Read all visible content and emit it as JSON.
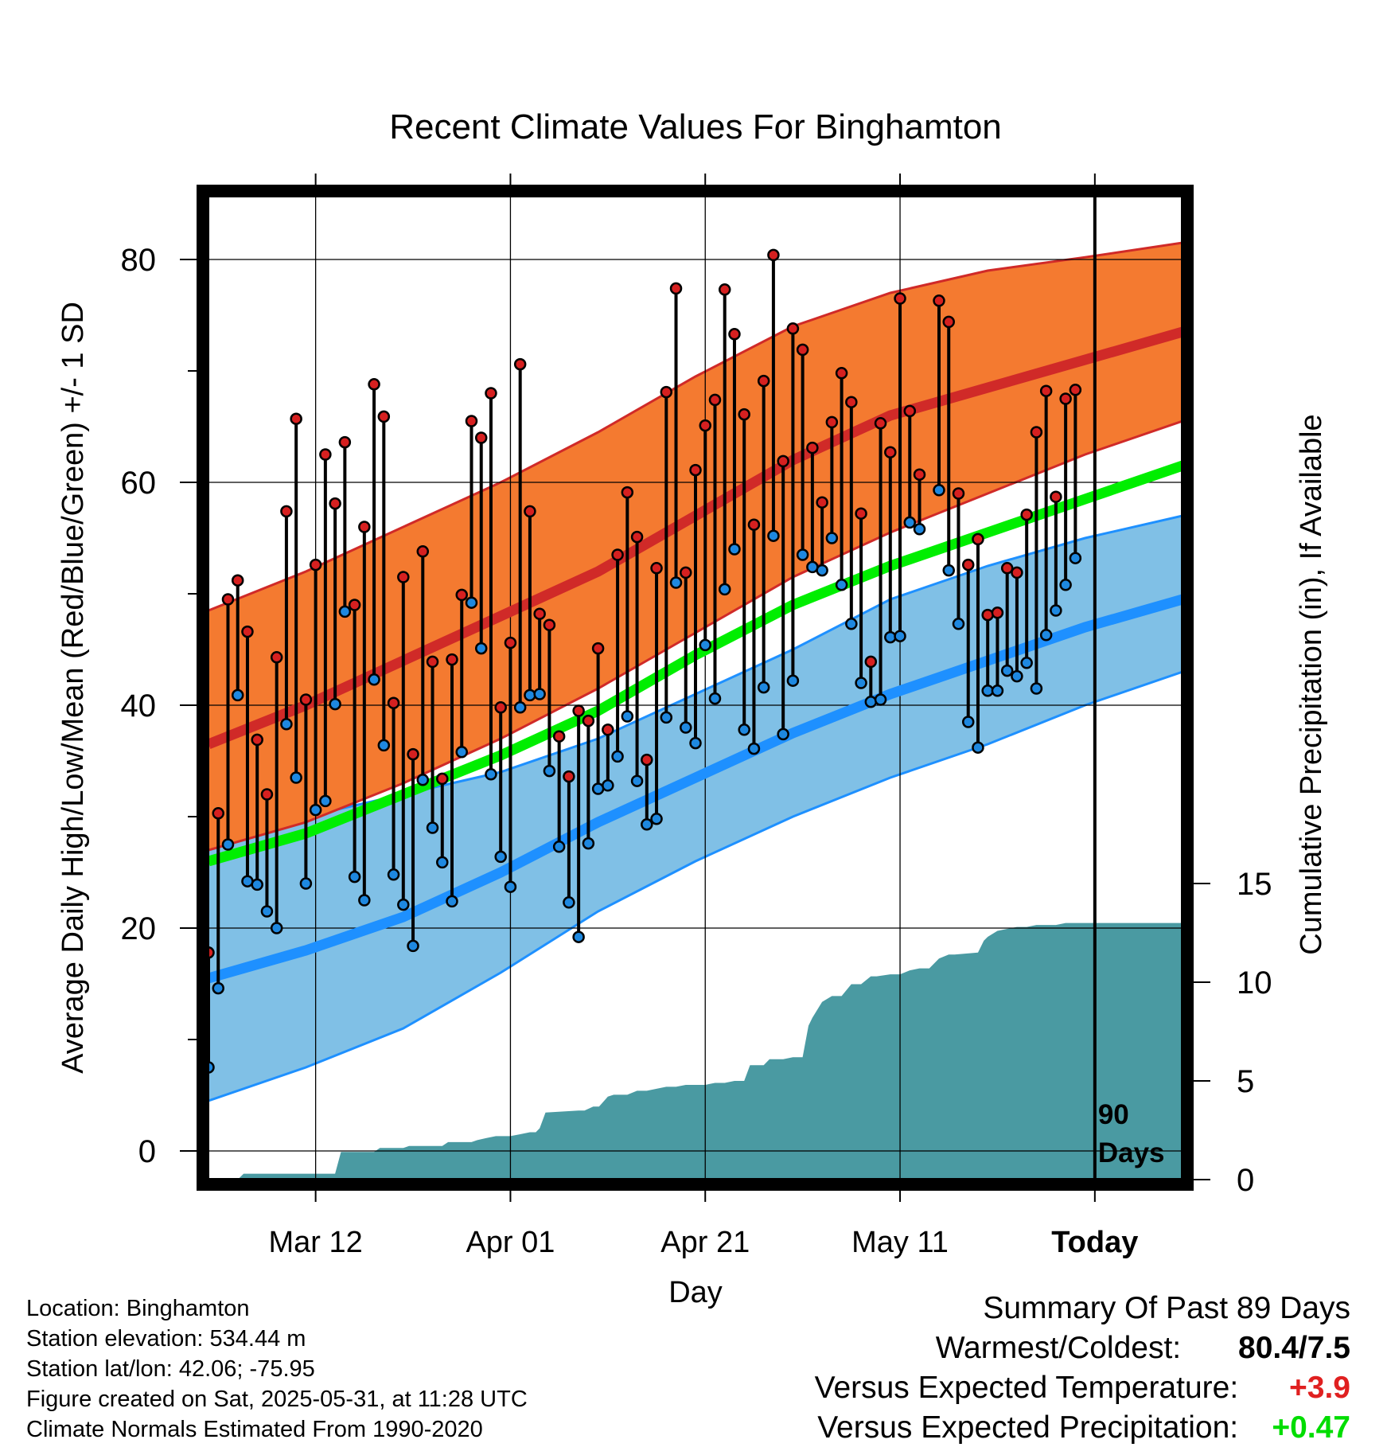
{
  "chart_data": {
    "type": "line",
    "title": "Recent Climate Values For Binghamton",
    "xlabel": "Day",
    "ylabel": "Average Daily High/Low/Mean (Red/Blue/Green) +/- 1 SD",
    "y2label": "Cumulative Precipitation (in), If Available",
    "ylim": [
      -2,
      87
    ],
    "y2lim": [
      0,
      29
    ],
    "xlim": [
      0,
      100
    ],
    "y_ticks": [
      "0",
      "20",
      "40",
      "60",
      "80"
    ],
    "y_tick_values": [
      0,
      20,
      40,
      60,
      80
    ],
    "y2_ticks": [
      "0",
      "5",
      "10",
      "15"
    ],
    "y2_tick_values": [
      0,
      5,
      10,
      15
    ],
    "x_ticks": [
      "Mar 12",
      "Apr 01",
      "Apr 21",
      "May 11",
      "Today"
    ],
    "x_tick_days": [
      11,
      31,
      51,
      71,
      91
    ],
    "today_day": 91,
    "today_label_line1": "90",
    "today_label_line2": "Days",
    "colors": {
      "high_band": "#f47a30",
      "high_line": "#d02a28",
      "low_band": "#80c0e6",
      "low_line": "#1e90ff",
      "mean_line": "#00ee00",
      "precip": "#4a9aa2",
      "high_marker": "#d62020",
      "low_marker": "#1e88e0"
    },
    "normals": {
      "days": [
        0,
        10,
        20,
        30,
        40,
        50,
        60,
        70,
        80,
        90,
        100
      ],
      "high_mean": [
        36.5,
        40,
        44,
        48,
        52,
        57,
        62,
        66,
        68.5,
        71,
        73.5
      ],
      "high_upper": [
        48.5,
        52,
        56,
        60,
        64.5,
        69.5,
        74,
        77,
        79,
        80.2,
        81.5
      ],
      "high_lower": [
        27,
        29.5,
        33,
        37,
        41.5,
        46.5,
        51.5,
        55.5,
        59,
        62.5,
        65.5
      ],
      "mean": [
        26,
        28.5,
        32,
        35.5,
        39.5,
        44.5,
        49,
        52.5,
        55.5,
        58.5,
        61.5
      ],
      "low_mean": [
        15.5,
        18,
        21,
        25,
        29.5,
        33.5,
        37.5,
        41,
        44,
        47,
        49.5
      ],
      "low_upper": [
        27.5,
        30,
        32,
        34,
        37,
        41,
        45,
        49.5,
        52.5,
        55,
        57
      ],
      "low_lower": [
        4.5,
        7.5,
        11,
        16,
        21.5,
        26,
        30,
        33.5,
        36.5,
        40,
        43
      ]
    },
    "series": [
      {
        "name": "High",
        "values": [
          17.8,
          30.3,
          49.5,
          51.2,
          46.6,
          36.9,
          32,
          44.3,
          57.4,
          65.7,
          40.5,
          52.6,
          62.5,
          58.1,
          63.6,
          49,
          56,
          68.8,
          65.9,
          40.2,
          51.5,
          35.6,
          53.8,
          43.9,
          33.4,
          44.1,
          49.9,
          65.5,
          64,
          68,
          39.8,
          45.6,
          70.6,
          57.4,
          48.2,
          47.2,
          37.2,
          33.6,
          39.5,
          38.6,
          45.1,
          37.8,
          53.5,
          59.1,
          55.1,
          35.1,
          52.3,
          68.1,
          77.4,
          51.9,
          61.1,
          65.1,
          67.4,
          77.3,
          73.3,
          66.1,
          56.2,
          69.1,
          80.4,
          61.9,
          73.8,
          71.9,
          63.1,
          58.2,
          65.4,
          69.8,
          67.2,
          57.2,
          43.9,
          65.3,
          62.7,
          76.5,
          66.4,
          60.7,
          null,
          76.3,
          74.4,
          59,
          52.6,
          54.9,
          48.1,
          48.3,
          52.3,
          51.9,
          57.1,
          64.5,
          68.2,
          58.7,
          67.5,
          68.3
        ]
      },
      {
        "name": "Low",
        "values": [
          7.5,
          14.6,
          27.5,
          40.9,
          24.2,
          23.9,
          21.5,
          20,
          38.3,
          33.5,
          24,
          30.6,
          31.4,
          40.1,
          48.4,
          24.6,
          22.5,
          42.3,
          36.4,
          24.8,
          22.1,
          18.4,
          33.3,
          29,
          25.9,
          22.4,
          35.8,
          49.2,
          45.1,
          33.8,
          26.4,
          23.7,
          39.8,
          40.9,
          41,
          34.1,
          27.3,
          22.3,
          19.2,
          27.6,
          32.5,
          32.8,
          35.4,
          39,
          33.2,
          29.3,
          29.8,
          38.9,
          51,
          38,
          36.6,
          45.4,
          40.6,
          50.4,
          54,
          37.8,
          36.1,
          41.6,
          55.2,
          37.4,
          42.2,
          53.5,
          52.4,
          52.1,
          55,
          50.8,
          47.3,
          42,
          40.3,
          40.5,
          46.1,
          46.2,
          56.4,
          55.8,
          null,
          59.3,
          52.1,
          47.3,
          38.5,
          36.2,
          41.3,
          41.3,
          43.1,
          42.6,
          43.8,
          41.5,
          46.3,
          48.5,
          50.8,
          53.2
        ]
      }
    ],
    "precip_cumulative": {
      "days": [
        0,
        3,
        3.6,
        13,
        13.6,
        17,
        17.6,
        20,
        20.6,
        24,
        24.6,
        27,
        27.6,
        28.5,
        29.5,
        30,
        31,
        32,
        33,
        33.6,
        34,
        34.6,
        38,
        38.6,
        39.5,
        40.1,
        41,
        41.6,
        43,
        44,
        45,
        46,
        47,
        48,
        49,
        50,
        51,
        52,
        53,
        54,
        55,
        55.6,
        57,
        57.6,
        58,
        59,
        60,
        61,
        61.6,
        62,
        63,
        64,
        65,
        66,
        67,
        68,
        68.6,
        70,
        71,
        72,
        73,
        74,
        75,
        76,
        76.6,
        79,
        79.6,
        80,
        81,
        82,
        83,
        84,
        85,
        86,
        87,
        88,
        89,
        90,
        100
      ],
      "values": [
        0,
        0,
        0.3,
        0.3,
        1.4,
        1.4,
        1.6,
        1.6,
        1.7,
        1.7,
        1.9,
        1.9,
        2,
        2.1,
        2.2,
        2.2,
        2.2,
        2.3,
        2.4,
        2.4,
        2.6,
        3.4,
        3.5,
        3.5,
        3.7,
        3.7,
        4.2,
        4.3,
        4.3,
        4.5,
        4.5,
        4.6,
        4.7,
        4.7,
        4.8,
        4.8,
        4.8,
        4.9,
        4.9,
        5,
        5,
        5.8,
        5.8,
        6.1,
        6.1,
        6.1,
        6.2,
        6.2,
        7.8,
        8.2,
        9,
        9.3,
        9.3,
        9.9,
        9.9,
        10.3,
        10.3,
        10.4,
        10.4,
        10.6,
        10.7,
        10.7,
        11.2,
        11.4,
        11.4,
        11.5,
        12.1,
        12.3,
        12.6,
        12.7,
        12.8,
        12.8,
        12.9,
        12.9,
        12.9,
        13,
        13,
        13,
        13
      ]
    }
  },
  "footer": {
    "location": "Location: Binghamton",
    "elevation": "Station elevation: 534.44 m",
    "latlon": "Station lat/lon: 42.06; -75.95",
    "created": "Figure created on Sat, 2025-05-31, at 11:28 UTC",
    "normals": "Climate Normals Estimated From 1990-2020"
  },
  "summary": {
    "heading": "Summary Of Past 89 Days",
    "warm_cold_label": "Warmest/Coldest:",
    "warm_cold_value": "80.4/7.5",
    "temp_label": "Versus Expected Temperature:",
    "temp_value": "+3.9",
    "temp_color": "#e02020",
    "precip_label": "Versus Expected Precipitation:",
    "precip_value": "+0.47",
    "precip_color": "#00dd00"
  }
}
